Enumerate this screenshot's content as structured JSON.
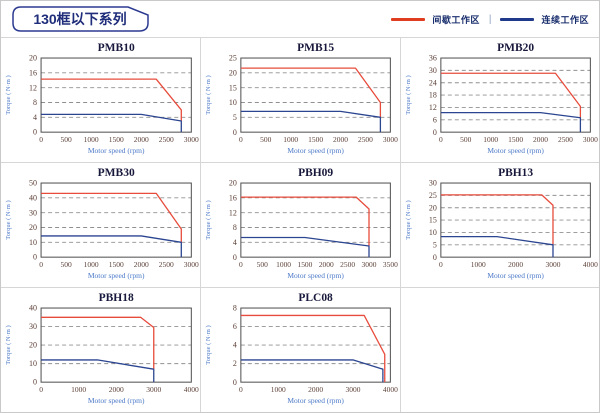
{
  "page": {
    "title": "130框以下系列",
    "legend": {
      "intermittent_label": "间歇工作区",
      "continuous_label": "连续工作区",
      "separator": "|",
      "intermittent_color": "#e74c3c",
      "continuous_color": "#2b4590"
    },
    "colors": {
      "header_navy": "#2b3990",
      "tick_text": "#5d4037",
      "axis_label_blue": "#4a78c8",
      "grid_line": "#909090",
      "axis_box": "#4d4d4d",
      "chart_title": "#18183c"
    }
  },
  "chart_data": [
    {
      "type": "line",
      "title": "PMB10",
      "xlabel": "Motor speed (rpm)",
      "ylabel": "Torque ( N·m )",
      "xlim": [
        0,
        3000
      ],
      "ylim": [
        0,
        20
      ],
      "xticks": [
        0,
        500,
        1000,
        1500,
        2000,
        2500,
        3000
      ],
      "yticks": [
        0,
        4,
        8,
        12,
        16,
        20
      ],
      "grid": "horizontal-dashed",
      "legend_position": "none",
      "series": [
        {
          "name": "间歇工作区",
          "color": "#e74c3c",
          "points": [
            [
              0,
              14.3
            ],
            [
              2300,
              14.3
            ],
            [
              2800,
              6
            ],
            [
              2800,
              3
            ]
          ]
        },
        {
          "name": "连续工作区",
          "color": "#2b4590",
          "points": [
            [
              0,
              4.8
            ],
            [
              2000,
              4.8
            ],
            [
              2800,
              3
            ],
            [
              2800,
              0
            ]
          ]
        }
      ]
    },
    {
      "type": "line",
      "title": "PMB15",
      "xlabel": "Motor speed (rpm)",
      "ylabel": "Torque ( N·m )",
      "xlim": [
        0,
        3000
      ],
      "ylim": [
        0,
        25
      ],
      "xticks": [
        0,
        500,
        1000,
        1500,
        2000,
        2500,
        3000
      ],
      "yticks": [
        0,
        5,
        10,
        15,
        20,
        25
      ],
      "grid": "horizontal-dashed",
      "legend_position": "none",
      "series": [
        {
          "name": "间歇工作区",
          "color": "#e74c3c",
          "points": [
            [
              0,
              21.6
            ],
            [
              2300,
              21.6
            ],
            [
              2800,
              10
            ],
            [
              2800,
              5
            ]
          ]
        },
        {
          "name": "连续工作区",
          "color": "#2b4590",
          "points": [
            [
              0,
              7
            ],
            [
              2000,
              7
            ],
            [
              2800,
              5
            ],
            [
              2800,
              0
            ]
          ]
        }
      ]
    },
    {
      "type": "line",
      "title": "PMB20",
      "xlabel": "Motor speed (rpm)",
      "ylabel": "Torque ( N·m )",
      "xlim": [
        0,
        3000
      ],
      "ylim": [
        0,
        36
      ],
      "xticks": [
        0,
        500,
        1000,
        1500,
        2000,
        2500,
        3000
      ],
      "yticks": [
        0,
        6,
        12,
        18,
        24,
        30,
        36
      ],
      "grid": "horizontal-dashed",
      "legend_position": "none",
      "series": [
        {
          "name": "间歇工作区",
          "color": "#e74c3c",
          "points": [
            [
              0,
              28.6
            ],
            [
              2300,
              28.6
            ],
            [
              2800,
              12.5
            ],
            [
              2800,
              7
            ]
          ]
        },
        {
          "name": "连续工作区",
          "color": "#2b4590",
          "points": [
            [
              0,
              9.5
            ],
            [
              2000,
              9.5
            ],
            [
              2800,
              7
            ],
            [
              2800,
              0
            ]
          ]
        }
      ]
    },
    {
      "type": "line",
      "title": "PMB30",
      "xlabel": "Motor speed (rpm)",
      "ylabel": "Torque ( N·m )",
      "xlim": [
        0,
        3000
      ],
      "ylim": [
        0,
        50
      ],
      "xticks": [
        0,
        500,
        1000,
        1500,
        2000,
        2500,
        3000
      ],
      "yticks": [
        0,
        10,
        20,
        30,
        40,
        50
      ],
      "grid": "horizontal-dashed",
      "legend_position": "none",
      "series": [
        {
          "name": "间歇工作区",
          "color": "#e74c3c",
          "points": [
            [
              0,
              43
            ],
            [
              2300,
              43
            ],
            [
              2800,
              19
            ],
            [
              2800,
              10
            ]
          ]
        },
        {
          "name": "连续工作区",
          "color": "#2b4590",
          "points": [
            [
              0,
              14.3
            ],
            [
              2000,
              14.3
            ],
            [
              2800,
              10
            ],
            [
              2800,
              0
            ]
          ]
        }
      ]
    },
    {
      "type": "line",
      "title": "PBH09",
      "xlabel": "Motor speed (rpm)",
      "ylabel": "Torque ( N·m )",
      "xlim": [
        0,
        3500
      ],
      "ylim": [
        0,
        20
      ],
      "xticks": [
        0,
        500,
        1000,
        1500,
        2000,
        2500,
        3000,
        3500
      ],
      "yticks": [
        0,
        4,
        8,
        12,
        16,
        20
      ],
      "grid": "horizontal-dashed",
      "legend_position": "none",
      "series": [
        {
          "name": "间歇工作区",
          "color": "#e74c3c",
          "points": [
            [
              0,
              16.2
            ],
            [
              2700,
              16.2
            ],
            [
              3000,
              13
            ],
            [
              3000,
              3
            ]
          ]
        },
        {
          "name": "连续工作区",
          "color": "#2b4590",
          "points": [
            [
              0,
              5.3
            ],
            [
              1500,
              5.3
            ],
            [
              3000,
              3
            ],
            [
              3000,
              0
            ]
          ]
        }
      ]
    },
    {
      "type": "line",
      "title": "PBH13",
      "xlabel": "Motor speed (rpm)",
      "ylabel": "Torque ( N·m )",
      "xlim": [
        0,
        4000
      ],
      "ylim": [
        0,
        30
      ],
      "xticks": [
        0,
        1000,
        2000,
        3000,
        4000
      ],
      "yticks": [
        0,
        5,
        10,
        15,
        20,
        25,
        30
      ],
      "grid": "horizontal-dashed",
      "legend_position": "none",
      "series": [
        {
          "name": "间歇工作区",
          "color": "#e74c3c",
          "points": [
            [
              0,
              25.2
            ],
            [
              2700,
              25.2
            ],
            [
              3000,
              21
            ],
            [
              3000,
              5
            ]
          ]
        },
        {
          "name": "连续工作区",
          "color": "#2b4590",
          "points": [
            [
              0,
              8.3
            ],
            [
              1500,
              8.3
            ],
            [
              3000,
              5
            ],
            [
              3000,
              0
            ]
          ]
        }
      ]
    },
    {
      "type": "line",
      "title": "PBH18",
      "xlabel": "Motor speed (rpm)",
      "ylabel": "Torque ( N·m )",
      "xlim": [
        0,
        4000
      ],
      "ylim": [
        0,
        40
      ],
      "xticks": [
        0,
        1000,
        2000,
        3000,
        4000
      ],
      "yticks": [
        0,
        10,
        20,
        30,
        40
      ],
      "grid": "horizontal-dashed",
      "legend_position": "none",
      "series": [
        {
          "name": "间歇工作区",
          "color": "#e74c3c",
          "points": [
            [
              0,
              35
            ],
            [
              2650,
              35
            ],
            [
              3000,
              29.5
            ],
            [
              3000,
              7
            ]
          ]
        },
        {
          "name": "连续工作区",
          "color": "#2b4590",
          "points": [
            [
              0,
              12
            ],
            [
              1500,
              12
            ],
            [
              3000,
              7
            ],
            [
              3000,
              0
            ]
          ]
        }
      ]
    },
    {
      "type": "line",
      "title": "PLC08",
      "xlabel": "Motor speed (rpm)",
      "ylabel": "Torque ( N·m )",
      "xlim": [
        0,
        4000
      ],
      "ylim": [
        0,
        8
      ],
      "xticks": [
        0,
        1000,
        2000,
        3000,
        4000
      ],
      "yticks": [
        0,
        2,
        4,
        6,
        8
      ],
      "grid": "horizontal-dashed",
      "legend_position": "none",
      "series": [
        {
          "name": "间歇工作区",
          "color": "#e74c3c",
          "points": [
            [
              0,
              7.2
            ],
            [
              3300,
              7.2
            ],
            [
              3850,
              3
            ],
            [
              3850,
              0
            ]
          ]
        },
        {
          "name": "连续工作区",
          "color": "#2b4590",
          "points": [
            [
              0,
              2.4
            ],
            [
              3000,
              2.4
            ],
            [
              3800,
              1.4
            ],
            [
              3800,
              0
            ]
          ]
        }
      ]
    }
  ]
}
